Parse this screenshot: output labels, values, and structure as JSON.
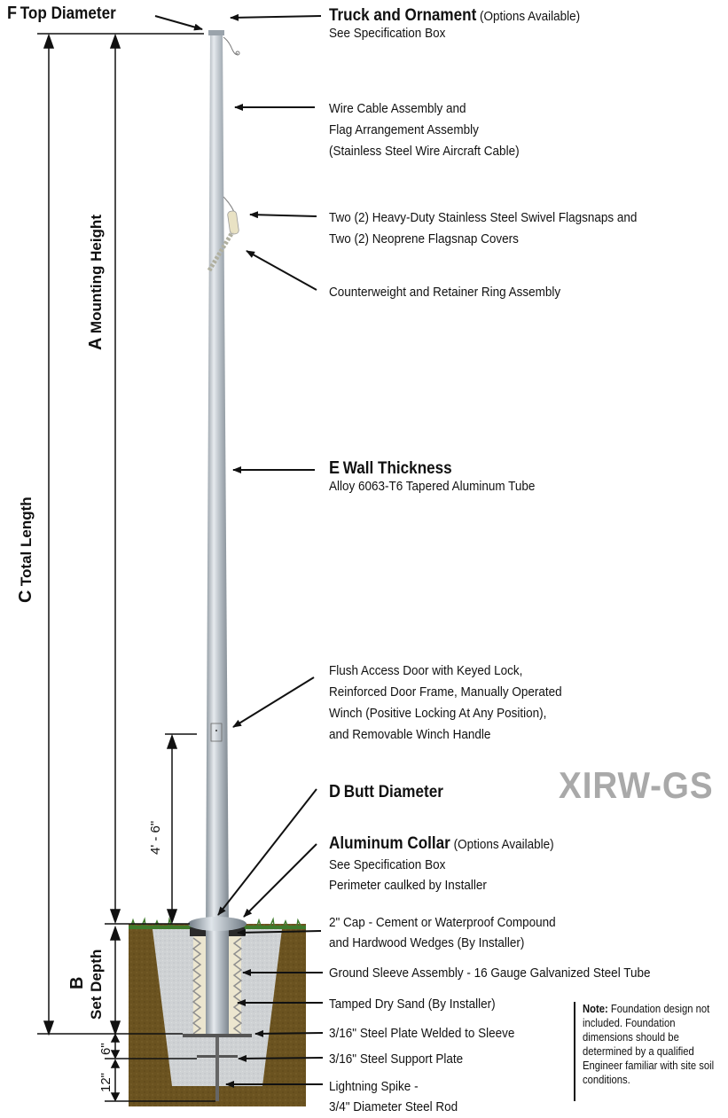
{
  "labels": {
    "top_diameter": {
      "letter": "F",
      "text": "Top Diameter"
    },
    "truck": {
      "title": "Truck and Ornament",
      "options": "(Options Available)",
      "sub": "See Specification Box"
    },
    "wire": {
      "line1": "Wire Cable Assembly and",
      "line2": "Flag Arrangement Assembly",
      "line3": "(Stainless Steel Wire Aircraft Cable)"
    },
    "flagsnaps": {
      "line1": "Two (2) Heavy-Duty Stainless Steel Swivel Flagsnaps and",
      "line2": "Two (2) Neoprene Flagsnap Covers"
    },
    "counterweight": "Counterweight and Retainer Ring Assembly",
    "wall": {
      "letter": "E",
      "title": "Wall Thickness",
      "sub": "Alloy 6063-T6 Tapered Aluminum Tube"
    },
    "door": {
      "line1": "Flush Access Door with Keyed Lock,",
      "line2": "Reinforced Door Frame, Manually Operated",
      "line3": "Winch (Positive Locking At Any Position),",
      "line4": "and Removable Winch Handle"
    },
    "butt": {
      "letter": "D",
      "title": "Butt Diameter"
    },
    "collar": {
      "title": "Aluminum Collar",
      "options": "(Options Available)",
      "line1": "See Specification Box",
      "line2": "Perimeter caulked by Installer"
    },
    "cap": {
      "line1": "2\" Cap - Cement or Waterproof Compound",
      "line2": "and Hardwood Wedges (By Installer)"
    },
    "sleeve": "Ground Sleeve Assembly - 16 Gauge Galvanized Steel Tube",
    "sand": "Tamped Dry Sand (By Installer)",
    "plate_welded": "3/16\" Steel Plate Welded to Sleeve",
    "support_plate": "3/16\" Steel Support Plate",
    "spike": {
      "line1": "Lightning Spike -",
      "line2": "3/4\" Diameter Steel Rod"
    }
  },
  "dimensions": {
    "mounting_height": {
      "letter": "A",
      "text": "Mounting Height"
    },
    "total_length": {
      "letter": "C",
      "text": "Total Length"
    },
    "set_depth": {
      "letter": "B",
      "text": "Set Depth"
    },
    "door_height": "4' - 6\"",
    "six_inch": "6\"",
    "twelve_inch": "12\""
  },
  "model": "XIRW-GS",
  "note": {
    "label": "Note:",
    "text": "Foundation design not included. Foundation dimensions should be determined by a qualified Engineer familiar with site soil conditions."
  },
  "colors": {
    "soil": "#6b5320",
    "grass": "#3f7a2c",
    "concrete": "#cfd2d4",
    "pole": "#b7c0c8",
    "model_text": "#a9a9a9"
  }
}
